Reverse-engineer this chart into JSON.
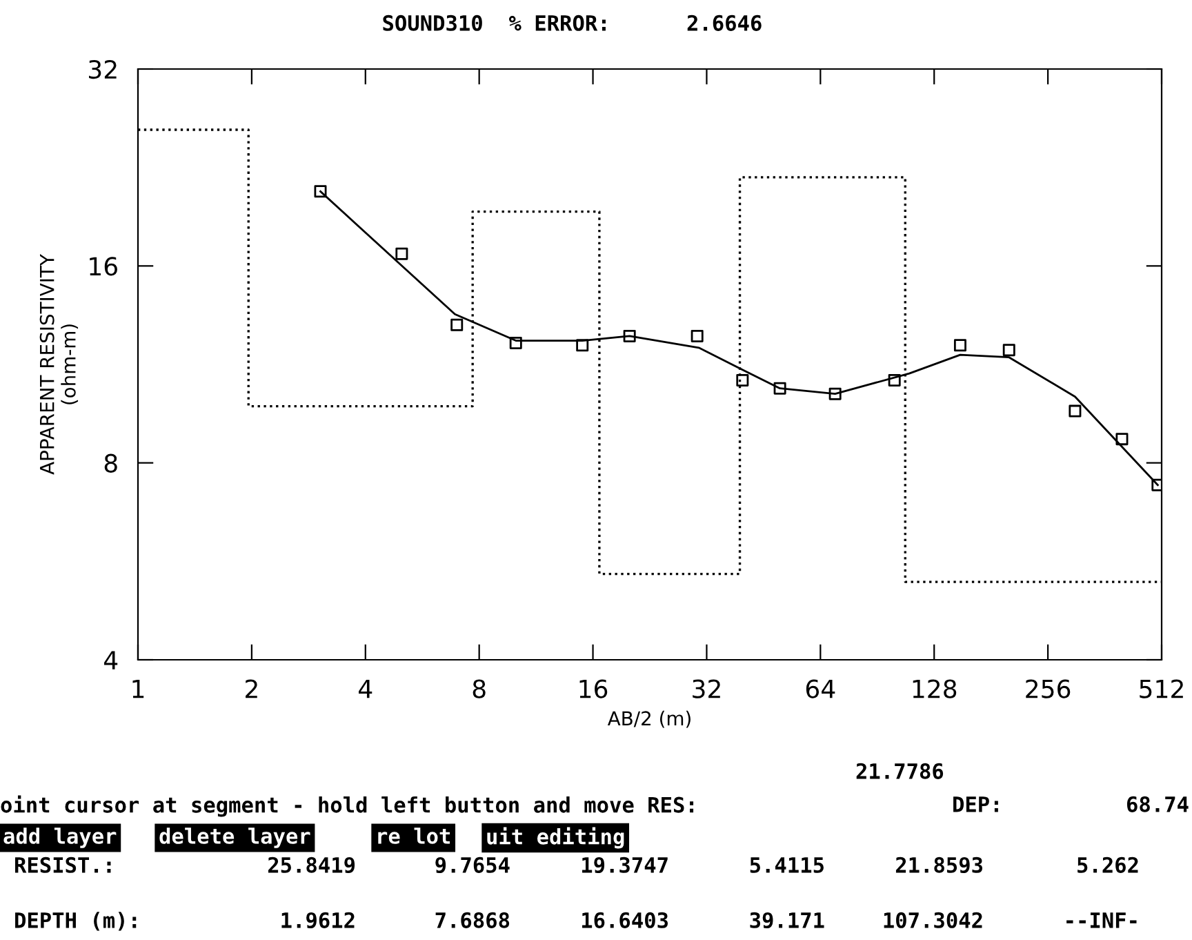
{
  "chart_data": {
    "type": "line",
    "title": "SOUND310  % ERROR:      2.6646",
    "xlabel": "AB/2 (m)",
    "ylabel": "APPARENT RESISTIVITY\n(ohm-m)",
    "log": "xy",
    "xlim": [
      1,
      512
    ],
    "ylim": [
      4,
      32
    ],
    "xticks": [
      1,
      2,
      4,
      8,
      16,
      32,
      64,
      128,
      256,
      512
    ],
    "yticks": [
      4,
      8,
      16,
      32
    ],
    "grid": false,
    "legend": false,
    "series": [
      {
        "type": "scatter",
        "color": "#000000",
        "marker": "square",
        "x": [
          3.04,
          4.99,
          6.98,
          10.0,
          15.0,
          20.0,
          30.2,
          39.8,
          50,
          70,
          100.5,
          150,
          202,
          302,
          402,
          500
        ],
        "values": [
          20.8,
          16.7,
          13.0,
          12.2,
          12.1,
          12.5,
          12.5,
          10.7,
          10.4,
          10.2,
          10.7,
          12.1,
          11.9,
          9.6,
          8.7,
          7.4
        ]
      },
      {
        "color": "#000000",
        "line_style": "solid",
        "marker": "none",
        "x": [
          3.04,
          6.9,
          10.0,
          15.0,
          20.0,
          30.5,
          39.8,
          50,
          70,
          110,
          150,
          202,
          302,
          500
        ],
        "values": [
          20.8,
          13.5,
          12.3,
          12.3,
          12.5,
          12.0,
          11.1,
          10.4,
          10.2,
          10.96,
          11.7,
          11.6,
          10.1,
          7.4
        ]
      },
      {
        "type": "step",
        "color": "#000000",
        "line_style": "dotted",
        "marker": "none",
        "x": [
          1,
          1.9612,
          7.6868,
          16.6403,
          39.171,
          107.3042,
          512
        ],
        "values": [
          25.8419,
          9.7654,
          19.3747,
          5.4115,
          21.8593,
          5.262,
          5.262
        ]
      }
    ],
    "annotations": [
      "21.7786",
      "oint cursor at segment - hold left button and move RES:",
      "DEP:",
      "68.74",
      "add layer",
      "delete layer",
      "re lot",
      "uit editing",
      "RESIST.:",
      "25.8419",
      "9.7654",
      "19.3747",
      "5.4115",
      "21.8593",
      "5.262",
      "DEPTH (m):",
      "1.9612",
      "7.6868",
      "16.6403",
      "39.171",
      "107.3042",
      "--INF-"
    ]
  }
}
